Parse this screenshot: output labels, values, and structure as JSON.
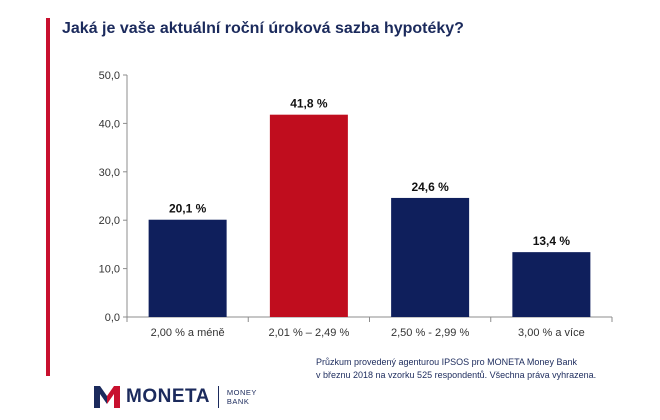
{
  "title": "Jaká je vaše aktuální roční úroková sazba hypotéky?",
  "chart_data": {
    "type": "bar",
    "categories": [
      "2,00 % a méně",
      "2,01 % – 2,49 %",
      "2,50 % - 2,99 %",
      "3,00 % a více"
    ],
    "values": [
      20.1,
      41.8,
      24.6,
      13.4
    ],
    "value_labels": [
      "20,1 %",
      "41,8 %",
      "24,6 %",
      "13,4 %"
    ],
    "highlight_index": 1,
    "ylim": [
      0,
      50
    ],
    "yticks": [
      "0,0",
      "10,0",
      "20,0",
      "30,0",
      "40,0",
      "50,0"
    ],
    "grid": false,
    "colors": {
      "bar": "#0f1f5c",
      "highlight": "#c00d1e"
    }
  },
  "note": {
    "line1": "Průzkum provedený agenturou IPSOS pro MONETA Money Bank",
    "line2": "v březnu 2018 na vzorku 525 respondentů. Všechna práva vyhrazena."
  },
  "logo": {
    "word": "MONETA",
    "sub_line1": "MONEY",
    "sub_line2": "BANK",
    "colors": {
      "navy": "#1b2a5c",
      "red": "#c8102e"
    }
  }
}
